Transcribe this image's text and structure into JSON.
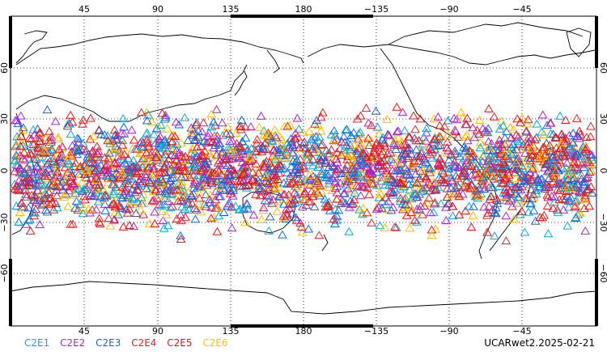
{
  "map": {
    "projection": "equirectangular",
    "center_longitude": 180,
    "lat_range": [
      -90,
      90
    ],
    "top_longitude_labels": [
      "45",
      "90",
      "135",
      "180",
      "−135",
      "−90",
      "−45"
    ],
    "bottom_longitude_labels": [
      "45",
      "90",
      "135",
      "180",
      "−135",
      "−90",
      "−45"
    ],
    "latitude_labels": [
      "60",
      "30",
      "0",
      "−30",
      "−60"
    ],
    "grid": "dotted",
    "coastline_color": "#000000",
    "marker_shape": "open-triangle"
  },
  "legend": {
    "items": [
      {
        "label": "C2E1",
        "color": "#00aadd"
      },
      {
        "label": "C2E2",
        "color": "#aa22cc"
      },
      {
        "label": "C2E3",
        "color": "#1166dd"
      },
      {
        "label": "C2E4",
        "color": "#dd2222"
      },
      {
        "label": "C2E5",
        "color": "#ee1111"
      },
      {
        "label": "C2E6",
        "color": "#ffbb00"
      }
    ]
  },
  "caption": "UCARwet2.2025-02-21",
  "observation_band": {
    "lat_min": -45,
    "lat_max": 45
  }
}
